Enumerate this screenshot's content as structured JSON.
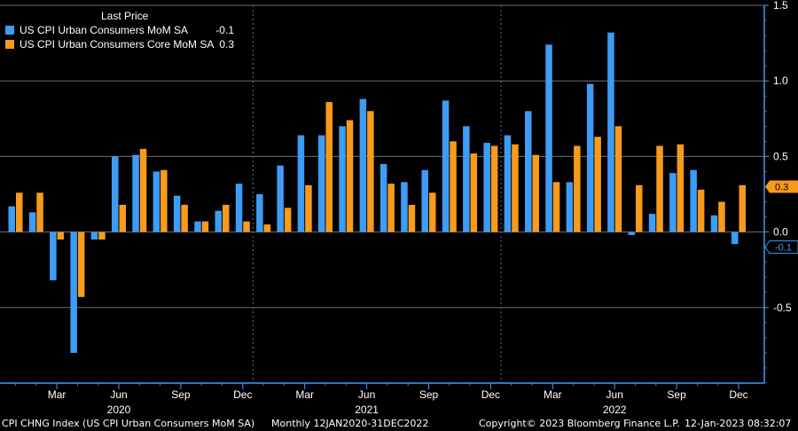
{
  "chart_data": {
    "type": "bar",
    "legend_title": "Last Price",
    "legend_placement": "top-left",
    "y_axis_side": "right",
    "ylim": [
      -1.0,
      1.5
    ],
    "yticks": [
      1.5,
      1.0,
      0.5,
      0.0,
      -0.5
    ],
    "ytick_labels": [
      "1.5",
      "1.0",
      "0.5",
      "0.0",
      "-0.5"
    ],
    "grid": true,
    "categories": [
      "Jan 2020",
      "Feb 2020",
      "Mar 2020",
      "Apr 2020",
      "May 2020",
      "Jun 2020",
      "Jul 2020",
      "Aug 2020",
      "Sep 2020",
      "Oct 2020",
      "Nov 2020",
      "Dec 2020",
      "Jan 2021",
      "Feb 2021",
      "Mar 2021",
      "Apr 2021",
      "May 2021",
      "Jun 2021",
      "Jul 2021",
      "Aug 2021",
      "Sep 2021",
      "Oct 2021",
      "Nov 2021",
      "Dec 2021",
      "Jan 2022",
      "Feb 2022",
      "Mar 2022",
      "Apr 2022",
      "May 2022",
      "Jun 2022",
      "Jul 2022",
      "Aug 2022",
      "Sep 2022",
      "Oct 2022",
      "Nov 2022",
      "Dec 2022"
    ],
    "x_tick_labels": [
      {
        "index": 2,
        "label": "Mar"
      },
      {
        "index": 5,
        "label": "Jun"
      },
      {
        "index": 8,
        "label": "Sep"
      },
      {
        "index": 11,
        "label": "Dec"
      },
      {
        "index": 14,
        "label": "Mar"
      },
      {
        "index": 17,
        "label": "Jun"
      },
      {
        "index": 20,
        "label": "Sep"
      },
      {
        "index": 23,
        "label": "Dec"
      },
      {
        "index": 26,
        "label": "Mar"
      },
      {
        "index": 29,
        "label": "Jun"
      },
      {
        "index": 32,
        "label": "Sep"
      },
      {
        "index": 35,
        "label": "Dec"
      }
    ],
    "year_labels": [
      {
        "index": 5,
        "label": "2020"
      },
      {
        "index": 17,
        "label": "2021"
      },
      {
        "index": 29,
        "label": "2022"
      }
    ],
    "series": [
      {
        "name": "US CPI Urban Consumers MoM SA",
        "last_price": "-0.1",
        "color": "#3d9cf5",
        "values": [
          0.17,
          0.13,
          -0.32,
          -0.8,
          -0.05,
          0.5,
          0.51,
          0.4,
          0.24,
          0.07,
          0.14,
          0.32,
          0.25,
          0.44,
          0.64,
          0.64,
          0.7,
          0.88,
          0.45,
          0.33,
          0.41,
          0.87,
          0.7,
          0.59,
          0.64,
          0.8,
          1.24,
          0.33,
          0.98,
          1.32,
          -0.02,
          0.12,
          0.39,
          0.41,
          0.11,
          -0.08
        ]
      },
      {
        "name": "US CPI Urban Consumers Core MoM SA",
        "last_price": "0.3",
        "color": "#f89a1c",
        "values": [
          0.26,
          0.26,
          -0.05,
          -0.43,
          -0.05,
          0.18,
          0.55,
          0.41,
          0.18,
          0.07,
          0.18,
          0.07,
          0.05,
          0.16,
          0.31,
          0.86,
          0.74,
          0.8,
          0.32,
          0.18,
          0.26,
          0.6,
          0.52,
          0.57,
          0.58,
          0.51,
          0.33,
          0.57,
          0.63,
          0.7,
          0.31,
          0.57,
          0.58,
          0.28,
          0.2,
          0.31
        ]
      }
    ]
  },
  "footer": {
    "left": "CPI CHNG Index (US CPI Urban Consumers MoM SA)",
    "middle": "Monthly 12JAN2020-31DEC2022",
    "copyright": "Copyright© 2023 Bloomberg Finance L.P.",
    "timestamp": "12-Jan-2023 08:32:07"
  }
}
